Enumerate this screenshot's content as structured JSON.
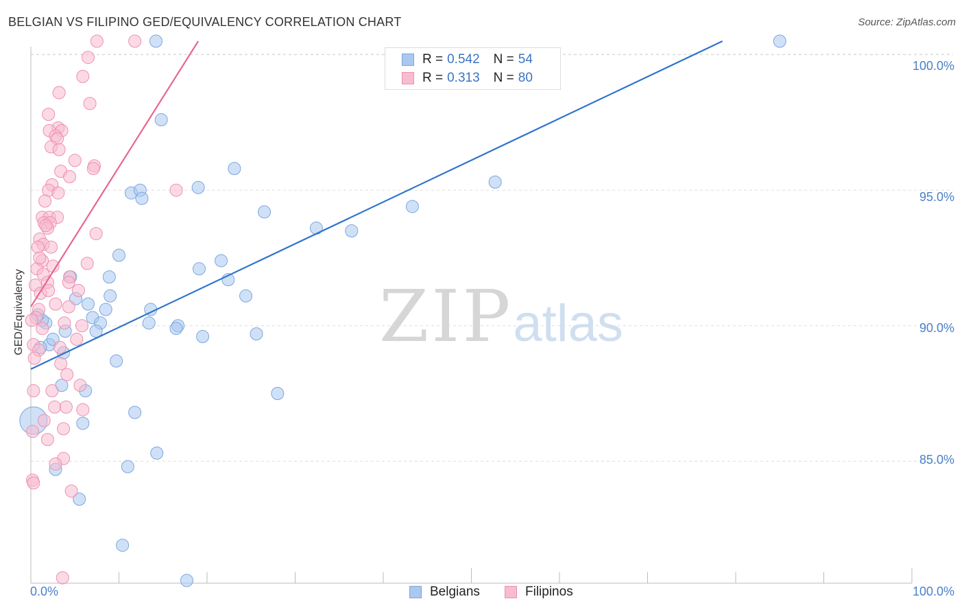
{
  "title": "BELGIAN VS FILIPINO GED/EQUIVALENCY CORRELATION CHART",
  "source": "Source: ZipAtlas.com",
  "watermark": {
    "zip": "ZIP",
    "atlas": "atlas"
  },
  "legend_top": [
    {
      "label": "R =",
      "r": "0.542",
      "n_label": "N =",
      "n": "54"
    },
    {
      "label": "R =",
      "r": "0.313",
      "n_label": "N =",
      "n": "80"
    }
  ],
  "legend_bottom": [
    "Belgians",
    "Filipinos"
  ],
  "colors": {
    "belgian_fill": "#aac8f0",
    "belgian_stroke": "#7aa6dc",
    "belgian_line": "#2f74cc",
    "filipino_fill": "#f7bcd0",
    "filipino_stroke": "#ee8fb0",
    "filipino_line": "#e8658f",
    "grid": "#dddddd",
    "tick_label": "#4a7fc8"
  },
  "chart_data": {
    "type": "scatter",
    "title": "BELGIAN VS FILIPINO GED/EQUIVALENCY CORRELATION CHART",
    "xlabel": "",
    "ylabel": "GED/Equivalency",
    "xlim": [
      0,
      100
    ],
    "ylim": [
      80.5,
      100.5
    ],
    "x_tick_labels": [
      "0.0%",
      "100.0%"
    ],
    "y_ticks": [
      85,
      90,
      95,
      100
    ],
    "y_tick_labels": [
      "85.0%",
      "90.0%",
      "95.0%",
      "100.0%"
    ],
    "grid": true,
    "series": [
      {
        "name": "Belgians",
        "R": 0.542,
        "N": 54,
        "trend": {
          "x": [
            0,
            78.5
          ],
          "y": [
            88.4,
            100.5
          ]
        },
        "points": [
          [
            14.2,
            100.5
          ],
          [
            85.0,
            100.5
          ],
          [
            14.8,
            97.6
          ],
          [
            23.1,
            95.8
          ],
          [
            19.0,
            95.1
          ],
          [
            52.7,
            95.3
          ],
          [
            11.4,
            94.9
          ],
          [
            12.4,
            95.0
          ],
          [
            12.6,
            94.7
          ],
          [
            26.5,
            94.2
          ],
          [
            43.3,
            94.4
          ],
          [
            32.4,
            93.6
          ],
          [
            36.4,
            93.5
          ],
          [
            10.0,
            92.6
          ],
          [
            21.6,
            92.4
          ],
          [
            19.1,
            92.1
          ],
          [
            8.9,
            91.8
          ],
          [
            22.4,
            91.7
          ],
          [
            4.5,
            91.8
          ],
          [
            9.0,
            91.1
          ],
          [
            24.4,
            91.1
          ],
          [
            5.1,
            91.0
          ],
          [
            6.5,
            90.8
          ],
          [
            13.6,
            90.6
          ],
          [
            8.5,
            90.6
          ],
          [
            7.0,
            90.3
          ],
          [
            13.4,
            90.1
          ],
          [
            7.9,
            90.1
          ],
          [
            16.7,
            90.0
          ],
          [
            16.5,
            89.9
          ],
          [
            1.7,
            90.1
          ],
          [
            3.9,
            89.8
          ],
          [
            7.4,
            89.8
          ],
          [
            19.5,
            89.6
          ],
          [
            25.6,
            89.7
          ],
          [
            2.1,
            89.3
          ],
          [
            1.1,
            89.2
          ],
          [
            3.7,
            89.0
          ],
          [
            9.7,
            88.7
          ],
          [
            3.5,
            87.8
          ],
          [
            6.2,
            87.6
          ],
          [
            28.0,
            87.5
          ],
          [
            11.8,
            86.8
          ],
          [
            5.9,
            86.4
          ],
          [
            0.3,
            86.5
          ],
          [
            14.3,
            85.3
          ],
          [
            11.0,
            84.8
          ],
          [
            2.8,
            84.7
          ],
          [
            5.5,
            83.6
          ],
          [
            10.4,
            81.9
          ],
          [
            17.7,
            80.6
          ],
          [
            1.3,
            90.2
          ],
          [
            0.8,
            90.4
          ],
          [
            2.5,
            89.5
          ]
        ],
        "point_sizes": {
          "0.3,86.5": "large"
        }
      },
      {
        "name": "Filipinos",
        "R": 0.313,
        "N": 80,
        "trend": {
          "x": [
            0,
            19
          ],
          "y": [
            90.7,
            100.5
          ]
        },
        "points": [
          [
            7.5,
            100.5
          ],
          [
            11.8,
            100.5
          ],
          [
            6.5,
            99.9
          ],
          [
            5.9,
            99.2
          ],
          [
            3.2,
            98.6
          ],
          [
            6.7,
            98.2
          ],
          [
            2.0,
            97.8
          ],
          [
            3.1,
            97.3
          ],
          [
            3.5,
            97.2
          ],
          [
            2.1,
            97.2
          ],
          [
            2.8,
            97.0
          ],
          [
            3.0,
            96.9
          ],
          [
            2.3,
            96.6
          ],
          [
            3.2,
            96.5
          ],
          [
            5.0,
            96.1
          ],
          [
            7.2,
            95.9
          ],
          [
            7.1,
            95.8
          ],
          [
            3.4,
            95.7
          ],
          [
            4.4,
            95.5
          ],
          [
            2.4,
            95.2
          ],
          [
            16.5,
            95.0
          ],
          [
            2.0,
            95.0
          ],
          [
            3.1,
            94.9
          ],
          [
            1.6,
            94.6
          ],
          [
            1.3,
            94.0
          ],
          [
            2.1,
            94.0
          ],
          [
            3.0,
            94.0
          ],
          [
            1.5,
            93.8
          ],
          [
            2.2,
            93.8
          ],
          [
            1.9,
            93.6
          ],
          [
            7.4,
            93.4
          ],
          [
            1.0,
            93.2
          ],
          [
            1.4,
            93.0
          ],
          [
            0.8,
            92.9
          ],
          [
            2.3,
            92.9
          ],
          [
            1.3,
            92.4
          ],
          [
            2.5,
            92.2
          ],
          [
            0.7,
            92.1
          ],
          [
            1.4,
            91.9
          ],
          [
            4.4,
            91.8
          ],
          [
            4.3,
            91.6
          ],
          [
            1.9,
            91.6
          ],
          [
            0.5,
            91.5
          ],
          [
            5.4,
            91.3
          ],
          [
            1.1,
            91.2
          ],
          [
            2.8,
            90.8
          ],
          [
            4.3,
            90.7
          ],
          [
            0.9,
            90.6
          ],
          [
            0.6,
            90.3
          ],
          [
            0.1,
            90.2
          ],
          [
            3.8,
            90.1
          ],
          [
            1.3,
            89.9
          ],
          [
            5.2,
            89.5
          ],
          [
            0.3,
            89.3
          ],
          [
            0.9,
            89.1
          ],
          [
            0.4,
            88.8
          ],
          [
            3.4,
            88.6
          ],
          [
            5.6,
            87.8
          ],
          [
            0.3,
            87.6
          ],
          [
            2.4,
            87.6
          ],
          [
            5.9,
            86.9
          ],
          [
            2.7,
            87.0
          ],
          [
            4.0,
            87.0
          ],
          [
            1.5,
            86.5
          ],
          [
            3.7,
            86.2
          ],
          [
            0.2,
            86.1
          ],
          [
            1.9,
            85.8
          ],
          [
            3.7,
            85.1
          ],
          [
            2.8,
            84.9
          ],
          [
            0.2,
            84.3
          ],
          [
            0.3,
            84.2
          ],
          [
            4.6,
            83.9
          ],
          [
            3.6,
            80.7
          ],
          [
            1.0,
            92.5
          ],
          [
            2.0,
            91.3
          ],
          [
            1.7,
            93.7
          ],
          [
            3.3,
            89.2
          ],
          [
            5.8,
            90.0
          ],
          [
            6.4,
            92.3
          ],
          [
            4.1,
            88.2
          ]
        ]
      }
    ]
  }
}
